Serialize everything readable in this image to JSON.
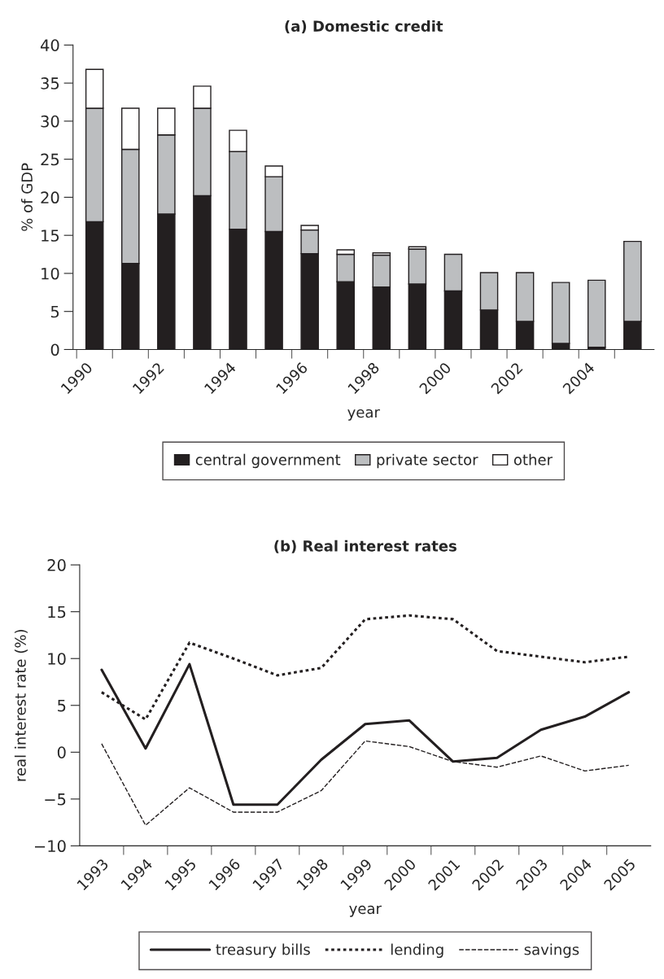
{
  "chart_data": [
    {
      "type": "bar",
      "title": "(a) Domestic credit",
      "xlabel": "year",
      "ylabel": "% of GDP",
      "stacked": true,
      "legend": "bottom",
      "ylim": [
        0,
        40
      ],
      "yticks": [
        0,
        5,
        10,
        15,
        20,
        25,
        30,
        35,
        40
      ],
      "categories": [
        "1990",
        null,
        "1992",
        null,
        "1994",
        null,
        "1996",
        null,
        "1998",
        null,
        "2000",
        null,
        "2002",
        null,
        "2004",
        null
      ],
      "series": [
        {
          "name": "central government",
          "color": "#231f20",
          "values": [
            16.8,
            11.3,
            17.8,
            20.2,
            15.8,
            15.5,
            12.6,
            8.9,
            8.2,
            8.6,
            7.7,
            5.2,
            3.7,
            0.8,
            0.3,
            3.7
          ]
        },
        {
          "name": "private sector",
          "color": "#bcbec0",
          "values": [
            14.9,
            15.0,
            10.4,
            11.5,
            10.2,
            7.2,
            3.1,
            3.6,
            4.2,
            4.6,
            4.8,
            4.9,
            6.4,
            8.0,
            8.8,
            10.5
          ]
        },
        {
          "name": "other",
          "color": "#ffffff",
          "values": [
            5.1,
            5.4,
            3.5,
            2.9,
            2.8,
            1.4,
            0.6,
            0.6,
            0.3,
            0.3,
            null,
            null,
            null,
            null,
            null,
            null
          ]
        }
      ]
    },
    {
      "type": "line",
      "title": "(b) Real interest rates",
      "xlabel": "year",
      "ylabel": "real interest rate (%)",
      "legend": "bottom",
      "ylim": [
        -10,
        20
      ],
      "yticks": [
        {
          "value": -10,
          "label": "−10"
        },
        {
          "value": -5,
          "label": "−5"
        },
        0,
        5,
        10,
        15,
        20
      ],
      "categories": [
        "1993",
        "1994",
        "1995",
        "1996",
        "1997",
        "1998",
        "1999",
        "2000",
        "2001",
        "2002",
        "2003",
        "2004",
        "2005"
      ],
      "series": [
        {
          "name": "treasury bills",
          "color": "#231f20",
          "line_style": "solid",
          "values": [
            8.8,
            0.4,
            9.4,
            -5.6,
            -5.6,
            -0.8,
            3.0,
            3.4,
            -1.0,
            -0.6,
            2.4,
            3.8,
            6.4
          ]
        },
        {
          "name": "lending",
          "color": "#231f20",
          "line_style": "dotted",
          "values": [
            6.4,
            3.5,
            11.7,
            10.0,
            8.2,
            9.0,
            14.2,
            14.6,
            14.2,
            10.8,
            10.2,
            9.6,
            10.2
          ]
        },
        {
          "name": "savings",
          "color": "#231f20",
          "line_style": "dashed",
          "values": [
            0.9,
            -7.8,
            -3.8,
            -6.4,
            -6.4,
            -4.1,
            1.2,
            0.6,
            -1.0,
            -1.6,
            -0.4,
            -2.0,
            -1.4
          ]
        }
      ]
    }
  ]
}
